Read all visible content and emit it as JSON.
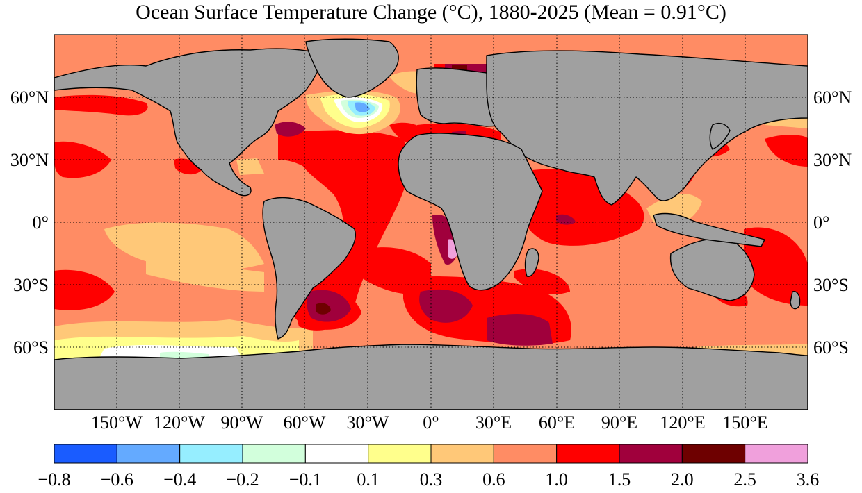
{
  "title": "Ocean Surface Temperature Change (°C), 1880-2025 (Mean = 0.91°C)",
  "lat_labels": [
    "60°N",
    "30°N",
    "0°",
    "30°S",
    "60°S"
  ],
  "lon_labels": [
    "150°W",
    "120°W",
    "90°W",
    "60°W",
    "30°W",
    "0°",
    "30°E",
    "60°E",
    "90°E",
    "120°E",
    "150°E"
  ],
  "colorbar": {
    "labels": [
      "−0.8",
      "−0.6",
      "−0.4",
      "−0.2",
      "−0.1",
      "0.1",
      "0.3",
      "0.6",
      "1.0",
      "1.5",
      "2.0",
      "2.5",
      "3.6"
    ],
    "colors": [
      "#1a5cff",
      "#64aaff",
      "#96eeff",
      "#d2ffdc",
      "#ffffff",
      "#ffff8c",
      "#ffc878",
      "#ff8c64",
      "#ff0000",
      "#a0003c",
      "#6e0000",
      "#f0a0dc"
    ]
  },
  "colors": {
    "land": "#a0a0a0",
    "background": "#ffffff"
  }
}
